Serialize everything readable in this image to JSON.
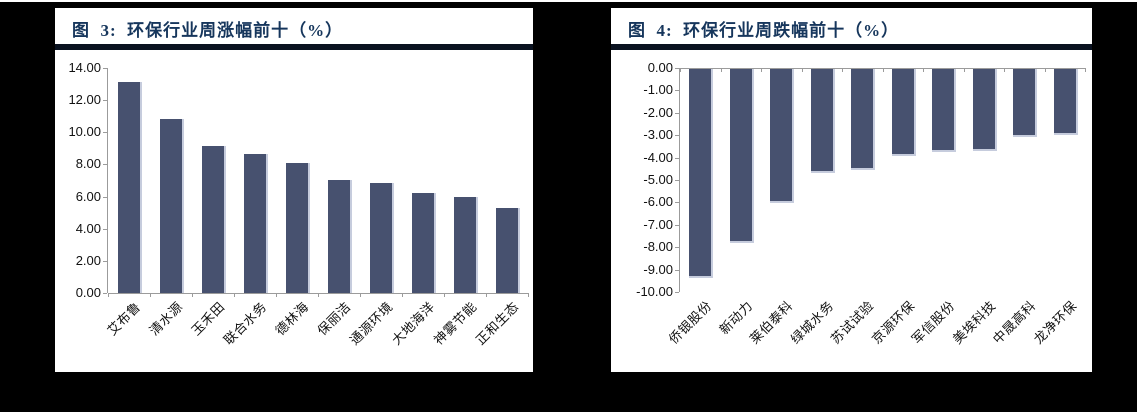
{
  "styles": {
    "canvas_bg": "#000000",
    "panel_bg": "#ffffff",
    "bar_color": "#47516f",
    "bar_edge_color": "#c6ccdd",
    "title_color": "#16365c",
    "title_rule_color": "#0a1220",
    "axis_line_color": "#9b9b9b",
    "axis_text_color": "#111111"
  },
  "chart_data": [
    {
      "type": "bar",
      "title": "图  3:  环保行业周涨幅前十（%）",
      "categories": [
        "艾布鲁",
        "清水源",
        "玉禾田",
        "联合水务",
        "德林海",
        "保丽洁",
        "通源环境",
        "大地海洋",
        "神雾节能",
        "正和生态"
      ],
      "values": [
        13.1,
        10.85,
        9.15,
        8.65,
        8.1,
        7.05,
        6.85,
        6.2,
        6.0,
        5.3
      ],
      "xlabel": "",
      "ylabel": "",
      "ylim": [
        0,
        14
      ],
      "ytick_step": 2,
      "ytick_labels": [
        "0.00",
        "2.00",
        "4.00",
        "6.00",
        "8.00",
        "10.00",
        "12.00",
        "14.00"
      ],
      "bar_direction": "up",
      "grid": false,
      "legend": null
    },
    {
      "type": "bar",
      "title": "图  4:  环保行业周跌幅前十（%）",
      "categories": [
        "侨银股份",
        "新动力",
        "莱伯泰科",
        "绿城水务",
        "苏试试验",
        "京源环保",
        "军信股份",
        "美埃科技",
        "中晟高科",
        "龙净环保"
      ],
      "values": [
        -9.25,
        -7.7,
        -5.9,
        -4.55,
        -4.4,
        -3.8,
        -3.6,
        -3.55,
        -2.95,
        -2.85
      ],
      "xlabel": "",
      "ylabel": "",
      "ylim": [
        -10,
        0
      ],
      "ytick_step": 1,
      "ytick_labels": [
        "0.00",
        "-1.00",
        "-2.00",
        "-3.00",
        "-4.00",
        "-5.00",
        "-6.00",
        "-7.00",
        "-8.00",
        "-9.00",
        "-10.00"
      ],
      "bar_direction": "down",
      "grid": false,
      "legend": null
    }
  ]
}
